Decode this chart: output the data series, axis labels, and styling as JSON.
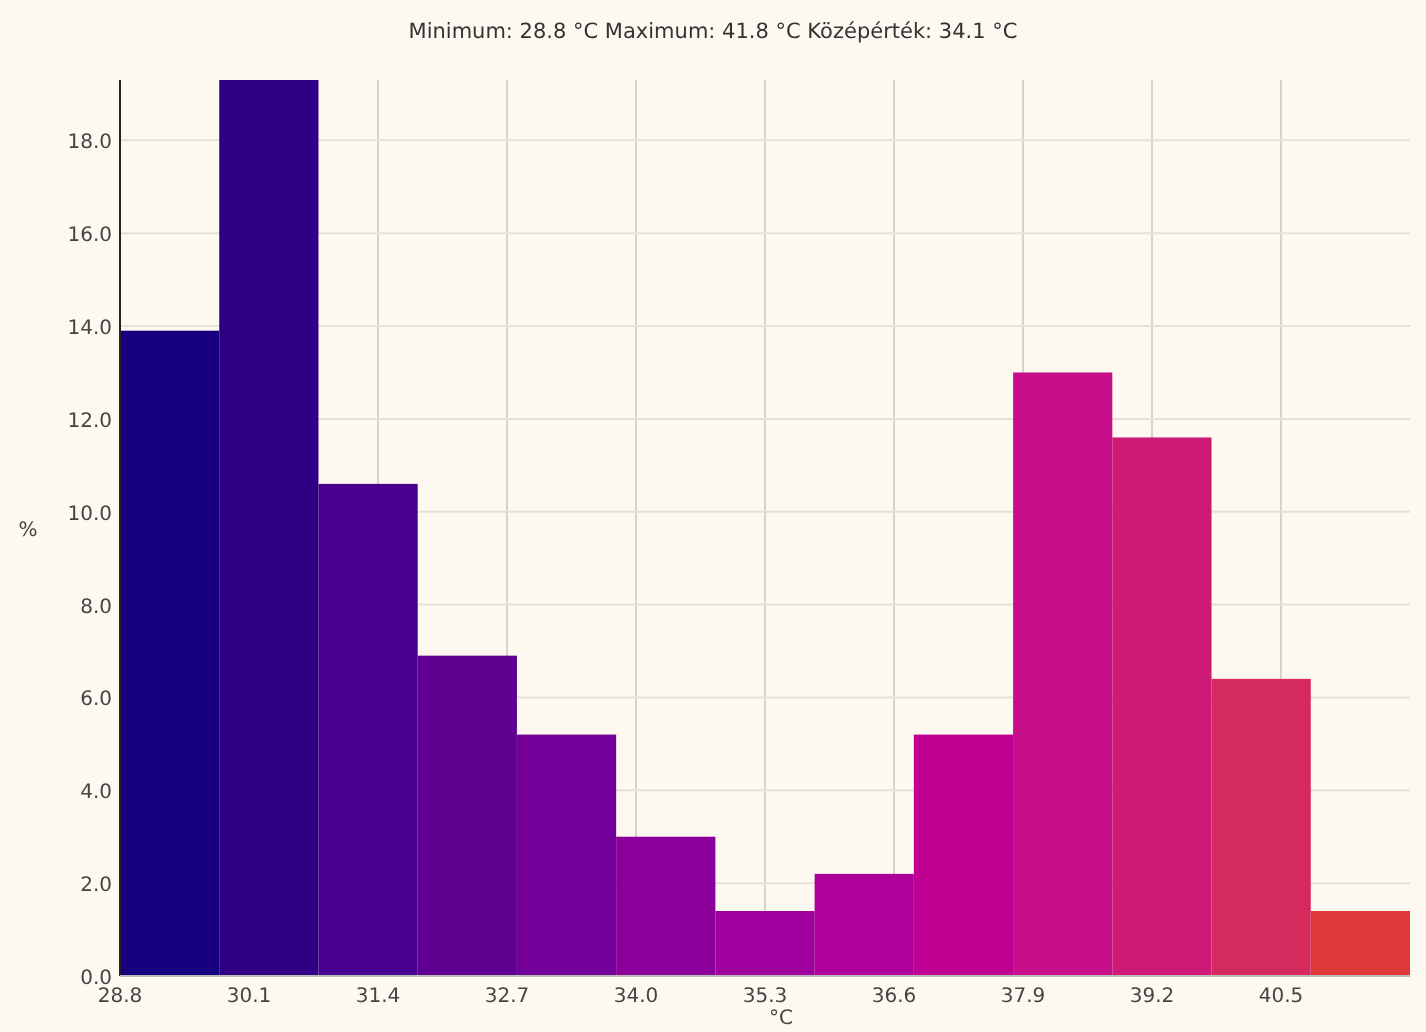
{
  "chart_data": {
    "type": "histogram",
    "title": "Minimum: 28.8 °C Maximum: 41.8 °C Középérték: 34.1 °C",
    "xlabel": "°C",
    "ylabel": "%",
    "bins": [
      28.8,
      29.8,
      30.8,
      31.8,
      32.8,
      33.8,
      34.8,
      35.8,
      36.8,
      37.8,
      38.8,
      39.8,
      40.8,
      41.8
    ],
    "values": [
      13.9,
      19.3,
      10.6,
      6.9,
      5.2,
      3.0,
      1.4,
      2.2,
      5.2,
      13.0,
      11.6,
      6.4,
      1.4
    ],
    "colors": [
      "#170080",
      "#2f0084",
      "#48008f",
      "#600090",
      "#730098",
      "#8b009a",
      "#a0009e",
      "#ae009a",
      "#bf0092",
      "#c80e8a",
      "#cd1a76",
      "#d42a5e",
      "#e0393a"
    ],
    "xlim": [
      28.8,
      41.8
    ],
    "xticks": [
      28.8,
      30.1,
      31.4,
      32.7,
      {
        "value": 34,
        "label": "34.0"
      },
      35.3,
      36.6,
      37.9,
      39.2,
      40.5
    ],
    "ylim": [
      0,
      19.3
    ],
    "yticks": [
      {
        "value": 0,
        "label": "0.0"
      },
      {
        "value": 2,
        "label": "2.0"
      },
      {
        "value": 4,
        "label": "4.0"
      },
      {
        "value": 6,
        "label": "6.0"
      },
      {
        "value": 8,
        "label": "8.0"
      },
      {
        "value": 10,
        "label": "10.0"
      },
      {
        "value": 12,
        "label": "12.0"
      },
      {
        "value": 14,
        "label": "14.0"
      },
      {
        "value": 16,
        "label": "16.0"
      },
      {
        "value": 18,
        "label": "18.0"
      }
    ],
    "grid": true
  }
}
